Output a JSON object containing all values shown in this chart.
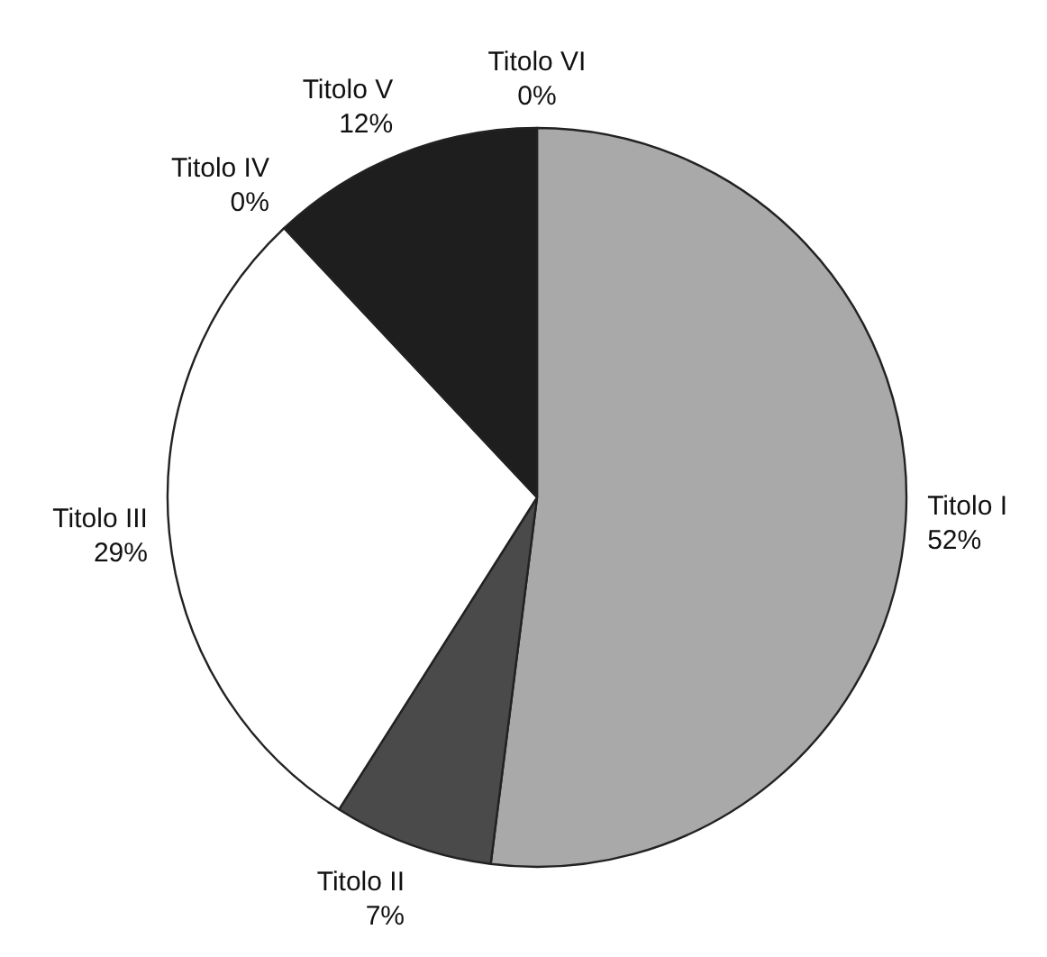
{
  "chart_data": {
    "type": "pie",
    "categories": [
      "Titolo I",
      "Titolo II",
      "Titolo III",
      "Titolo IV",
      "Titolo V",
      "Titolo VI"
    ],
    "values": [
      52,
      7,
      29,
      0,
      12,
      0
    ],
    "colors": [
      "#a9a9a9",
      "#4a4a4a",
      "#ffffff",
      "#777777",
      "#1e1e1e",
      "#999999"
    ],
    "value_labels": [
      "52%",
      "7%",
      "29%",
      "0%",
      "12%",
      "0%"
    ]
  }
}
